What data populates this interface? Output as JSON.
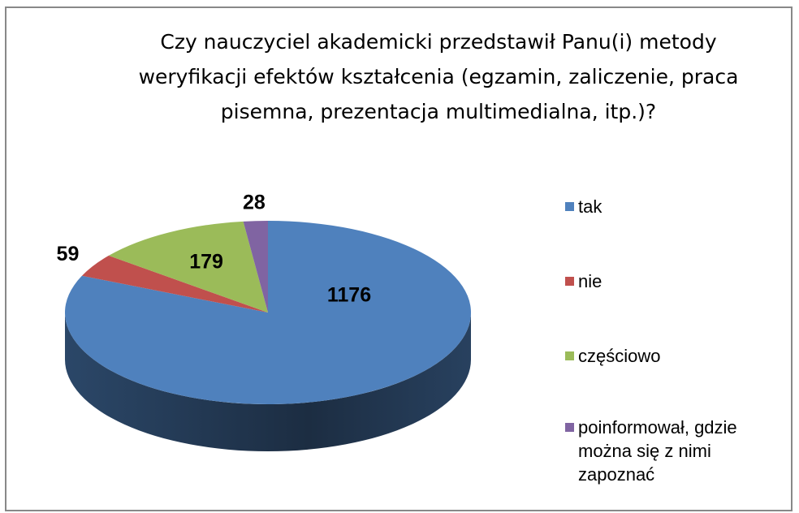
{
  "chart_data": {
    "type": "pie",
    "title": "Czy nauczyciel akademicki przedstawił Panu(i) metody weryfikacji efektów kształcenia (egzamin, zaliczenie, praca pisemna, prezentacja multimedialna,  itp.)?",
    "categories": [
      "tak",
      "nie",
      "częściowo",
      "poinformował, gdzie można się z nimi zapoznać"
    ],
    "values": [
      1176,
      59,
      179,
      28
    ],
    "colors": [
      "#4f81bd",
      "#c0504d",
      "#9bbb59",
      "#8064a2"
    ],
    "legend": "right"
  }
}
